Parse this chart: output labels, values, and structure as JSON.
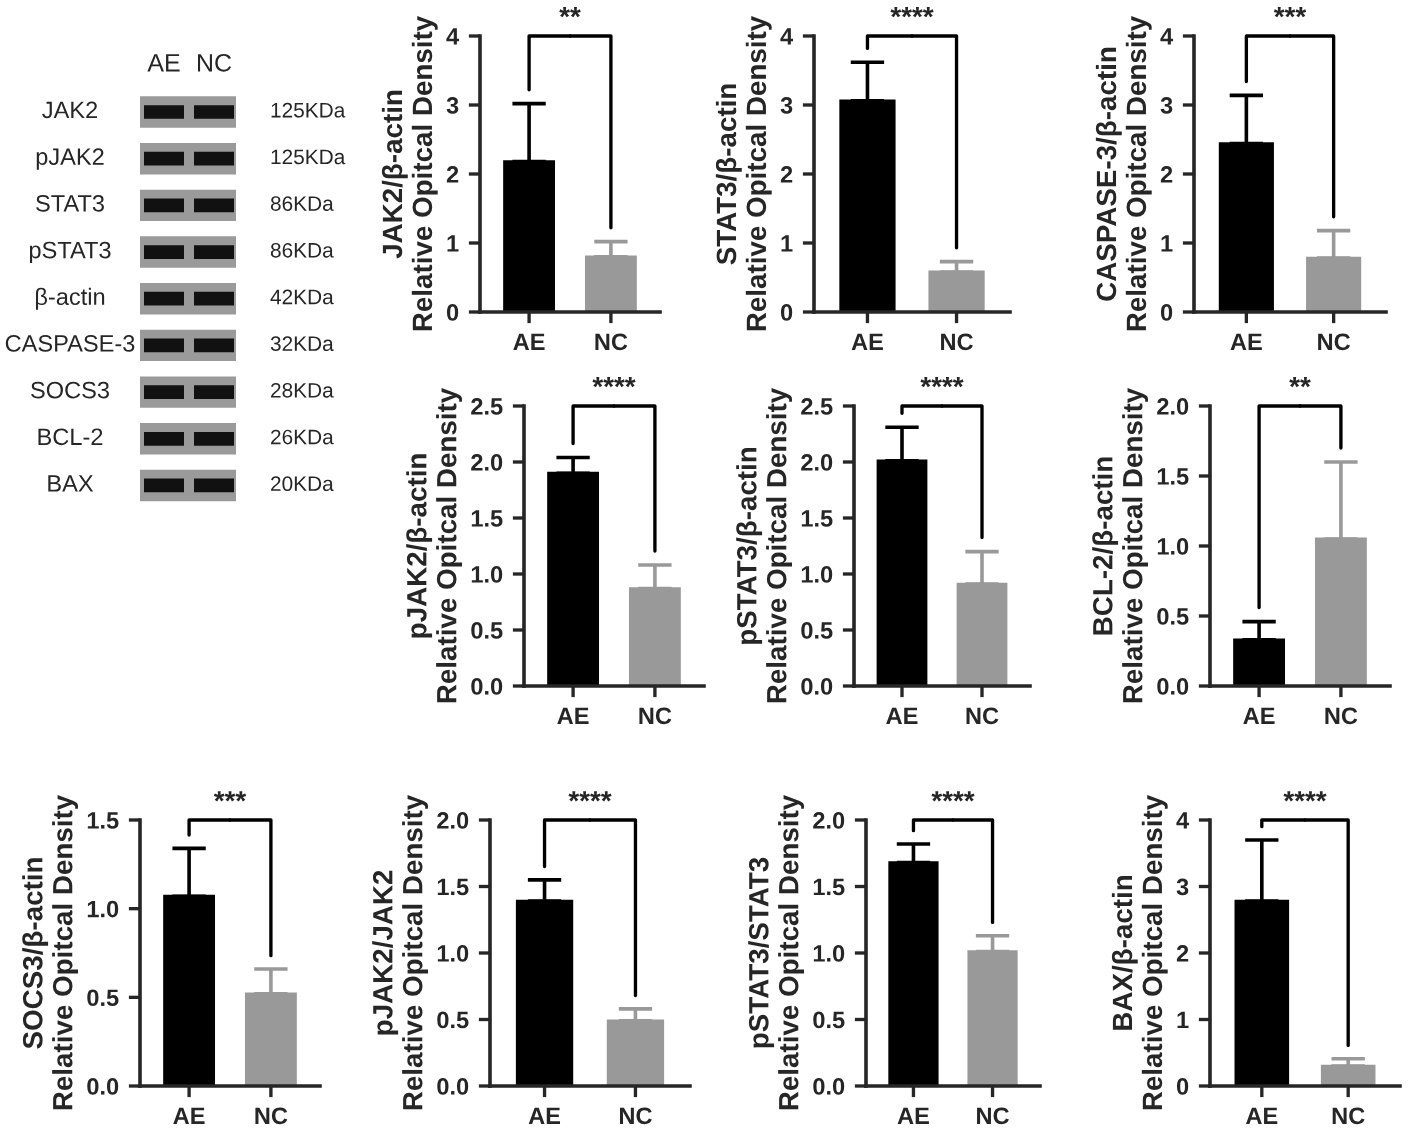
{
  "chart_data": [
    {
      "type": "other",
      "categories": [
        "AE",
        "NC"
      ],
      "y_categories": [
        "JAK2",
        "pJAK2",
        "STAT3",
        "pSTAT3",
        "β-actin",
        "CASPASE-3",
        "SOCS3",
        "BCL-2",
        "BAX"
      ],
      "y2_categories": [
        "125KDa",
        "125KDa",
        "86KDa",
        "86KDa",
        "42KDa",
        "32KDa",
        "28KDa",
        "26KDa",
        "20KDa"
      ]
    },
    {
      "type": "bar",
      "categories": [
        "AE",
        "NC"
      ],
      "ylabel": "JAK2/β-actin\nRelative Opitcal Density",
      "values": [
        2.18,
        0.8
      ],
      "errors": [
        [
          2.18,
          3.02
        ],
        [
          0.8,
          1.02
        ]
      ],
      "colors": [
        "#000000",
        "#999999"
      ],
      "ylim": [
        0,
        4
      ],
      "yticks": [
        0,
        1,
        2,
        3,
        4
      ],
      "annotations": [
        "**"
      ]
    },
    {
      "type": "bar",
      "categories": [
        "AE",
        "NC"
      ],
      "ylabel": "STAT3/β-actin\nRelative Opitcal Density",
      "values": [
        3.06,
        0.58
      ],
      "errors": [
        [
          3.06,
          3.62
        ],
        [
          0.58,
          0.73
        ]
      ],
      "colors": [
        "#000000",
        "#999999"
      ],
      "ylim": [
        0,
        4
      ],
      "yticks": [
        0,
        1,
        2,
        3,
        4
      ],
      "annotations": [
        "****"
      ]
    },
    {
      "type": "bar",
      "categories": [
        "AE",
        "NC"
      ],
      "ylabel": "CASPASE-3/β-actin\nRelative Opitcal Density",
      "values": [
        2.44,
        0.78
      ],
      "errors": [
        [
          2.44,
          3.14
        ],
        [
          0.78,
          1.18
        ]
      ],
      "colors": [
        "#000000",
        "#999999"
      ],
      "ylim": [
        0,
        4
      ],
      "yticks": [
        0,
        1,
        2,
        3,
        4
      ],
      "annotations": [
        "***"
      ]
    },
    {
      "type": "bar",
      "categories": [
        "AE",
        "NC"
      ],
      "ylabel": "pJAK2/β-actin\nRelative Opitcal Density",
      "values": [
        1.9,
        0.87
      ],
      "errors": [
        [
          1.9,
          2.04
        ],
        [
          0.87,
          1.08
        ]
      ],
      "colors": [
        "#000000",
        "#999999"
      ],
      "ylim": [
        0,
        2.5
      ],
      "yticks": [
        {
          "value": 0,
          "label": "0.0"
        },
        {
          "value": 0.5,
          "label": "0.5"
        },
        {
          "value": 1,
          "label": "1.0"
        },
        {
          "value": 1.5,
          "label": "1.5"
        },
        {
          "value": 2,
          "label": "2.0"
        },
        {
          "value": 2.5,
          "label": "2.5"
        }
      ],
      "annotations": [
        "****"
      ]
    },
    {
      "type": "bar",
      "categories": [
        "AE",
        "NC"
      ],
      "ylabel": "pSTAT3/β-actin\nRelative Opitcal Density",
      "values": [
        2.01,
        0.91
      ],
      "errors": [
        [
          2.01,
          2.31
        ],
        [
          0.91,
          1.2
        ]
      ],
      "colors": [
        "#000000",
        "#999999"
      ],
      "ylim": [
        0,
        2.5
      ],
      "yticks": [
        {
          "value": 0,
          "label": "0.0"
        },
        {
          "value": 0.5,
          "label": "0.5"
        },
        {
          "value": 1,
          "label": "1.0"
        },
        {
          "value": 1.5,
          "label": "1.5"
        },
        {
          "value": 2,
          "label": "2.0"
        },
        {
          "value": 2.5,
          "label": "2.5"
        }
      ],
      "annotations": [
        "****"
      ]
    },
    {
      "type": "bar",
      "categories": [
        "AE",
        "NC"
      ],
      "ylabel": "BCL-2/β-actin\nRelative Opitcal Density",
      "values": [
        0.33,
        1.05
      ],
      "errors": [
        [
          0.33,
          0.46
        ],
        [
          1.05,
          1.6
        ]
      ],
      "colors": [
        "#000000",
        "#999999"
      ],
      "ylim": [
        0,
        2
      ],
      "yticks": [
        {
          "value": 0,
          "label": "0.0"
        },
        {
          "value": 0.5,
          "label": "0.5"
        },
        {
          "value": 1,
          "label": "1.0"
        },
        {
          "value": 1.5,
          "label": "1.5"
        },
        {
          "value": 2,
          "label": "2.0"
        }
      ],
      "annotations": [
        "**"
      ]
    },
    {
      "type": "bar",
      "categories": [
        "AE",
        "NC"
      ],
      "ylabel": "SOCS3/β-actin\nRelative Opitcal Density",
      "values": [
        1.07,
        0.52
      ],
      "errors": [
        [
          1.07,
          1.34
        ],
        [
          0.52,
          0.66
        ]
      ],
      "colors": [
        "#000000",
        "#999999"
      ],
      "ylim": [
        0,
        1.5
      ],
      "yticks": [
        {
          "value": 0,
          "label": "0.0"
        },
        {
          "value": 0.5,
          "label": "0.5"
        },
        {
          "value": 1,
          "label": "1.0"
        },
        {
          "value": 1.5,
          "label": "1.5"
        }
      ],
      "annotations": [
        "***"
      ]
    },
    {
      "type": "bar",
      "categories": [
        "AE",
        "NC"
      ],
      "ylabel": "pJAK2/JAK2\nRelative Opitcal Density",
      "values": [
        1.39,
        0.49
      ],
      "errors": [
        [
          1.39,
          1.55
        ],
        [
          0.49,
          0.58
        ]
      ],
      "colors": [
        "#000000",
        "#999999"
      ],
      "ylim": [
        0,
        2
      ],
      "yticks": [
        {
          "value": 0,
          "label": "0.0"
        },
        {
          "value": 0.5,
          "label": "0.5"
        },
        {
          "value": 1,
          "label": "1.0"
        },
        {
          "value": 1.5,
          "label": "1.5"
        },
        {
          "value": 2,
          "label": "2.0"
        }
      ],
      "annotations": [
        "****"
      ]
    },
    {
      "type": "bar",
      "categories": [
        "AE",
        "NC"
      ],
      "ylabel": "pSTAT3/STAT3\nRelative Opitcal Density",
      "values": [
        1.68,
        1.01
      ],
      "errors": [
        [
          1.68,
          1.82
        ],
        [
          1.01,
          1.13
        ]
      ],
      "colors": [
        "#000000",
        "#999999"
      ],
      "ylim": [
        0,
        2
      ],
      "yticks": [
        {
          "value": 0,
          "label": "0.0"
        },
        {
          "value": 0.5,
          "label": "0.5"
        },
        {
          "value": 1,
          "label": "1.0"
        },
        {
          "value": 1.5,
          "label": "1.5"
        },
        {
          "value": 2,
          "label": "2.0"
        }
      ],
      "annotations": [
        "****"
      ]
    },
    {
      "type": "bar",
      "categories": [
        "AE",
        "NC"
      ],
      "ylabel": "BAX/β-actin\nRelative Opitcal Density",
      "values": [
        2.78,
        0.3
      ],
      "errors": [
        [
          2.78,
          3.7
        ],
        [
          0.3,
          0.41
        ]
      ],
      "colors": [
        "#000000",
        "#999999"
      ],
      "ylim": [
        0,
        4
      ],
      "yticks": [
        0,
        1,
        2,
        3,
        4
      ],
      "annotations": [
        "****"
      ]
    }
  ]
}
